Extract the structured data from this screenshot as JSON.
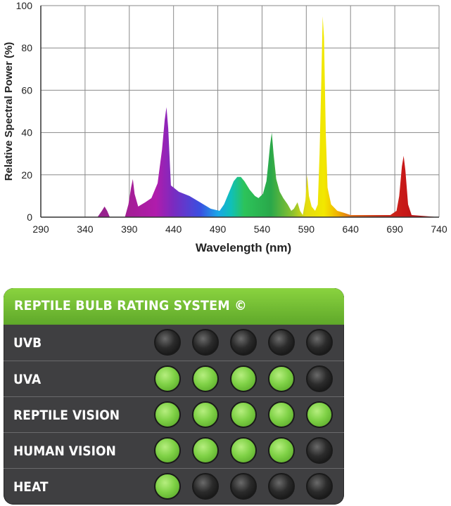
{
  "chart_data": {
    "type": "area",
    "xlabel": "Wavelength (nm)",
    "ylabel": "Relative Spectral Power (%)",
    "xlim": [
      290,
      740
    ],
    "ylim": [
      0,
      100
    ],
    "x_ticks": [
      290,
      340,
      390,
      440,
      490,
      540,
      590,
      640,
      690,
      740
    ],
    "y_ticks": [
      0,
      20,
      40,
      60,
      80,
      100
    ],
    "grid": true,
    "fill": "visible-spectrum gradient by wavelength",
    "points": [
      [
        290,
        0
      ],
      [
        354,
        0
      ],
      [
        359,
        3
      ],
      [
        362,
        5
      ],
      [
        365,
        3
      ],
      [
        368,
        0
      ],
      [
        385,
        0
      ],
      [
        389,
        6
      ],
      [
        392,
        14
      ],
      [
        394,
        18
      ],
      [
        396,
        11
      ],
      [
        400,
        5
      ],
      [
        408,
        7
      ],
      [
        415,
        9
      ],
      [
        422,
        16
      ],
      [
        427,
        32
      ],
      [
        430,
        46
      ],
      [
        432,
        52
      ],
      [
        434,
        42
      ],
      [
        437,
        15
      ],
      [
        446,
        12
      ],
      [
        458,
        10
      ],
      [
        470,
        7
      ],
      [
        482,
        4
      ],
      [
        492,
        3
      ],
      [
        497,
        6
      ],
      [
        502,
        11
      ],
      [
        508,
        17
      ],
      [
        512,
        19
      ],
      [
        516,
        19
      ],
      [
        520,
        17
      ],
      [
        526,
        13
      ],
      [
        532,
        10
      ],
      [
        536,
        9
      ],
      [
        541,
        11
      ],
      [
        545,
        17
      ],
      [
        547,
        25
      ],
      [
        549,
        34
      ],
      [
        551,
        40
      ],
      [
        553,
        30
      ],
      [
        556,
        18
      ],
      [
        560,
        12
      ],
      [
        564,
        9
      ],
      [
        569,
        6
      ],
      [
        573,
        3
      ],
      [
        576,
        4
      ],
      [
        580,
        7
      ],
      [
        583,
        3
      ],
      [
        586,
        1
      ],
      [
        589,
        8
      ],
      [
        591,
        20
      ],
      [
        593,
        10
      ],
      [
        596,
        5
      ],
      [
        600,
        3
      ],
      [
        603,
        6
      ],
      [
        605,
        30
      ],
      [
        607,
        65
      ],
      [
        608.5,
        95
      ],
      [
        610,
        85
      ],
      [
        612,
        40
      ],
      [
        614,
        14
      ],
      [
        618,
        6
      ],
      [
        625,
        3
      ],
      [
        633,
        2
      ],
      [
        640,
        1
      ],
      [
        660,
        1
      ],
      [
        685,
        1
      ],
      [
        692,
        3
      ],
      [
        695,
        10
      ],
      [
        698,
        24
      ],
      [
        700,
        29
      ],
      [
        702,
        22
      ],
      [
        705,
        6
      ],
      [
        709,
        1
      ],
      [
        740,
        0
      ]
    ]
  },
  "rating": {
    "title": "REPTILE BULB RATING SYSTEM ©",
    "rows": [
      {
        "label": "UVB",
        "on": 0
      },
      {
        "label": "UVA",
        "on": 4
      },
      {
        "label": "REPTILE VISION",
        "on": 5
      },
      {
        "label": "HUMAN VISION",
        "on": 4
      },
      {
        "label": "HEAT",
        "on": 1
      }
    ],
    "max": 5,
    "colors": {
      "on": "#7fd146",
      "off": "#1c1c1c",
      "header": "#74c236",
      "panel": "#3f3f41"
    }
  }
}
